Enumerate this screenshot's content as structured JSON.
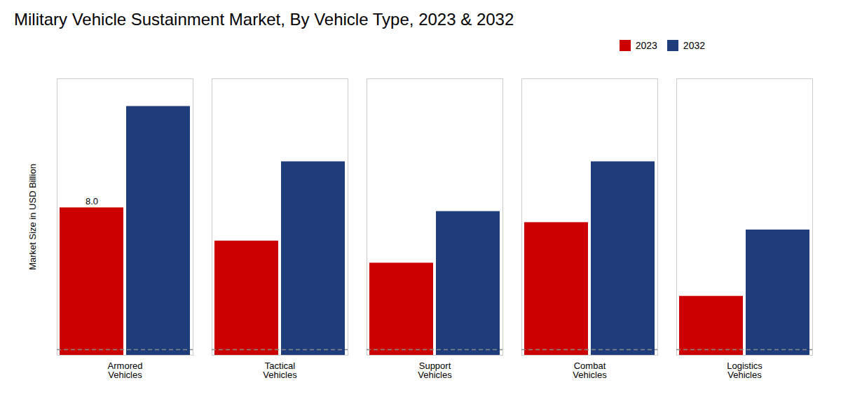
{
  "chart_data": {
    "type": "bar",
    "title": "Military Vehicle Sustainment Market, By Vehicle Type, 2023 & 2032",
    "ylabel": "Market Size in USD Billion",
    "categories": [
      "Armored\nVehicles",
      "Tactical\nVehicles",
      "Support\nVehicles",
      "Combat\nVehicles",
      "Logistics\nVehicles"
    ],
    "series": [
      {
        "name": "2023",
        "color": "#cc0000",
        "values": [
          8.0,
          6.2,
          5.0,
          7.2,
          3.2
        ]
      },
      {
        "name": "2032",
        "color": "#1f3d7a",
        "values": [
          13.5,
          10.5,
          7.8,
          10.5,
          6.8
        ]
      }
    ],
    "ylim": [
      0,
      15
    ],
    "yticks": [],
    "tick_labels": "x",
    "grid": false,
    "legend": "upper right",
    "annotations": [
      {
        "text": "8.0",
        "x": "Armored\nVehicles",
        "series": "2023",
        "y": 8.0
      }
    ],
    "reference_lines": [
      {
        "y": 0.3,
        "line_style": "dashed",
        "color": "#888888"
      }
    ]
  }
}
